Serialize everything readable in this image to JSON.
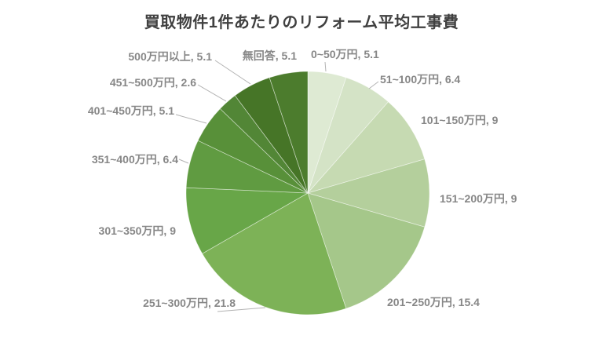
{
  "page": {
    "background": "#ffffff"
  },
  "chart_data": {
    "type": "pie",
    "title": "買取物件1件あたりのリフォーム平均工事費",
    "categories": [
      "0~50万円",
      "51~100万円",
      "101~150万円",
      "151~200万円",
      "201~250万円",
      "251~300万円",
      "301~350万円",
      "351~400万円",
      "401~450万円",
      "451~500万円",
      "500万円以上",
      "無回答"
    ],
    "values": [
      5.1,
      6.4,
      9,
      9,
      15.4,
      21.8,
      9,
      6.4,
      5.1,
      2.6,
      5.1,
      5.1
    ],
    "displayed_values": [
      "5.1",
      "6.4",
      "9",
      "9",
      "15.4",
      "21.8",
      "9",
      "6.4",
      "5.1",
      "2.6",
      "5.1",
      "5.1"
    ],
    "colors": [
      "#deead3",
      "#d4e3c6",
      "#c6dab2",
      "#b4cf9c",
      "#a5c78a",
      "#7db257",
      "#68a648",
      "#609b41",
      "#589039",
      "#528636",
      "#467527",
      "#4c7c2d"
    ],
    "label_format": "{category}, {value}",
    "legend_position": "none",
    "start_angle_deg": 0,
    "direction": "clockwise",
    "title_color": "#404040",
    "label_text_color": "#878787",
    "leader_line_color": "#b3b3b3"
  }
}
